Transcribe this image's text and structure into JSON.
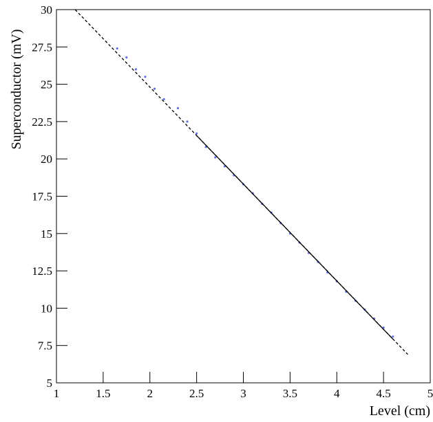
{
  "chart_data": {
    "type": "scatter",
    "x_label": "Level (cm)",
    "y_label": "Superconductor (mV)",
    "xlim": [
      1,
      5
    ],
    "xticks": [
      1,
      1.5,
      2,
      2.5,
      3,
      3.5,
      4,
      4.5,
      5
    ],
    "ylim": [
      5,
      30
    ],
    "yticks": [
      5,
      7.5,
      10,
      12.5,
      15,
      17.5,
      20,
      22.5,
      25,
      27.5,
      30
    ],
    "series": [
      {
        "kind": "points",
        "color": "#3b4fd8",
        "x": [
          1.65,
          1.75,
          1.85,
          1.95,
          2.05,
          2.15,
          2.3,
          2.4,
          2.5,
          2.6,
          2.7,
          2.8,
          2.9,
          3.0,
          3.1,
          3.2,
          3.3,
          3.4,
          3.5,
          3.6,
          3.7,
          3.8,
          3.9,
          4.0,
          4.1,
          4.2,
          4.3,
          4.4,
          4.5,
          4.6
        ],
        "values": [
          27.4,
          26.8,
          26.0,
          25.5,
          24.7,
          24.0,
          23.4,
          22.5,
          21.7,
          20.8,
          20.1,
          19.5,
          18.9,
          18.3,
          17.7,
          17.0,
          16.4,
          15.7,
          15.0,
          14.4,
          13.7,
          13.1,
          12.4,
          11.8,
          11.1,
          10.5,
          9.9,
          9.3,
          8.7,
          8.1
        ]
      },
      {
        "kind": "line",
        "style": "dashed",
        "color": "#000000",
        "x": [
          1.2,
          4.76
        ],
        "values": [
          30,
          6.9
        ]
      },
      {
        "kind": "line",
        "style": "solid",
        "color": "#000000",
        "x": [
          2.5,
          4.6
        ],
        "values": [
          21.56,
          7.93
        ]
      }
    ]
  }
}
